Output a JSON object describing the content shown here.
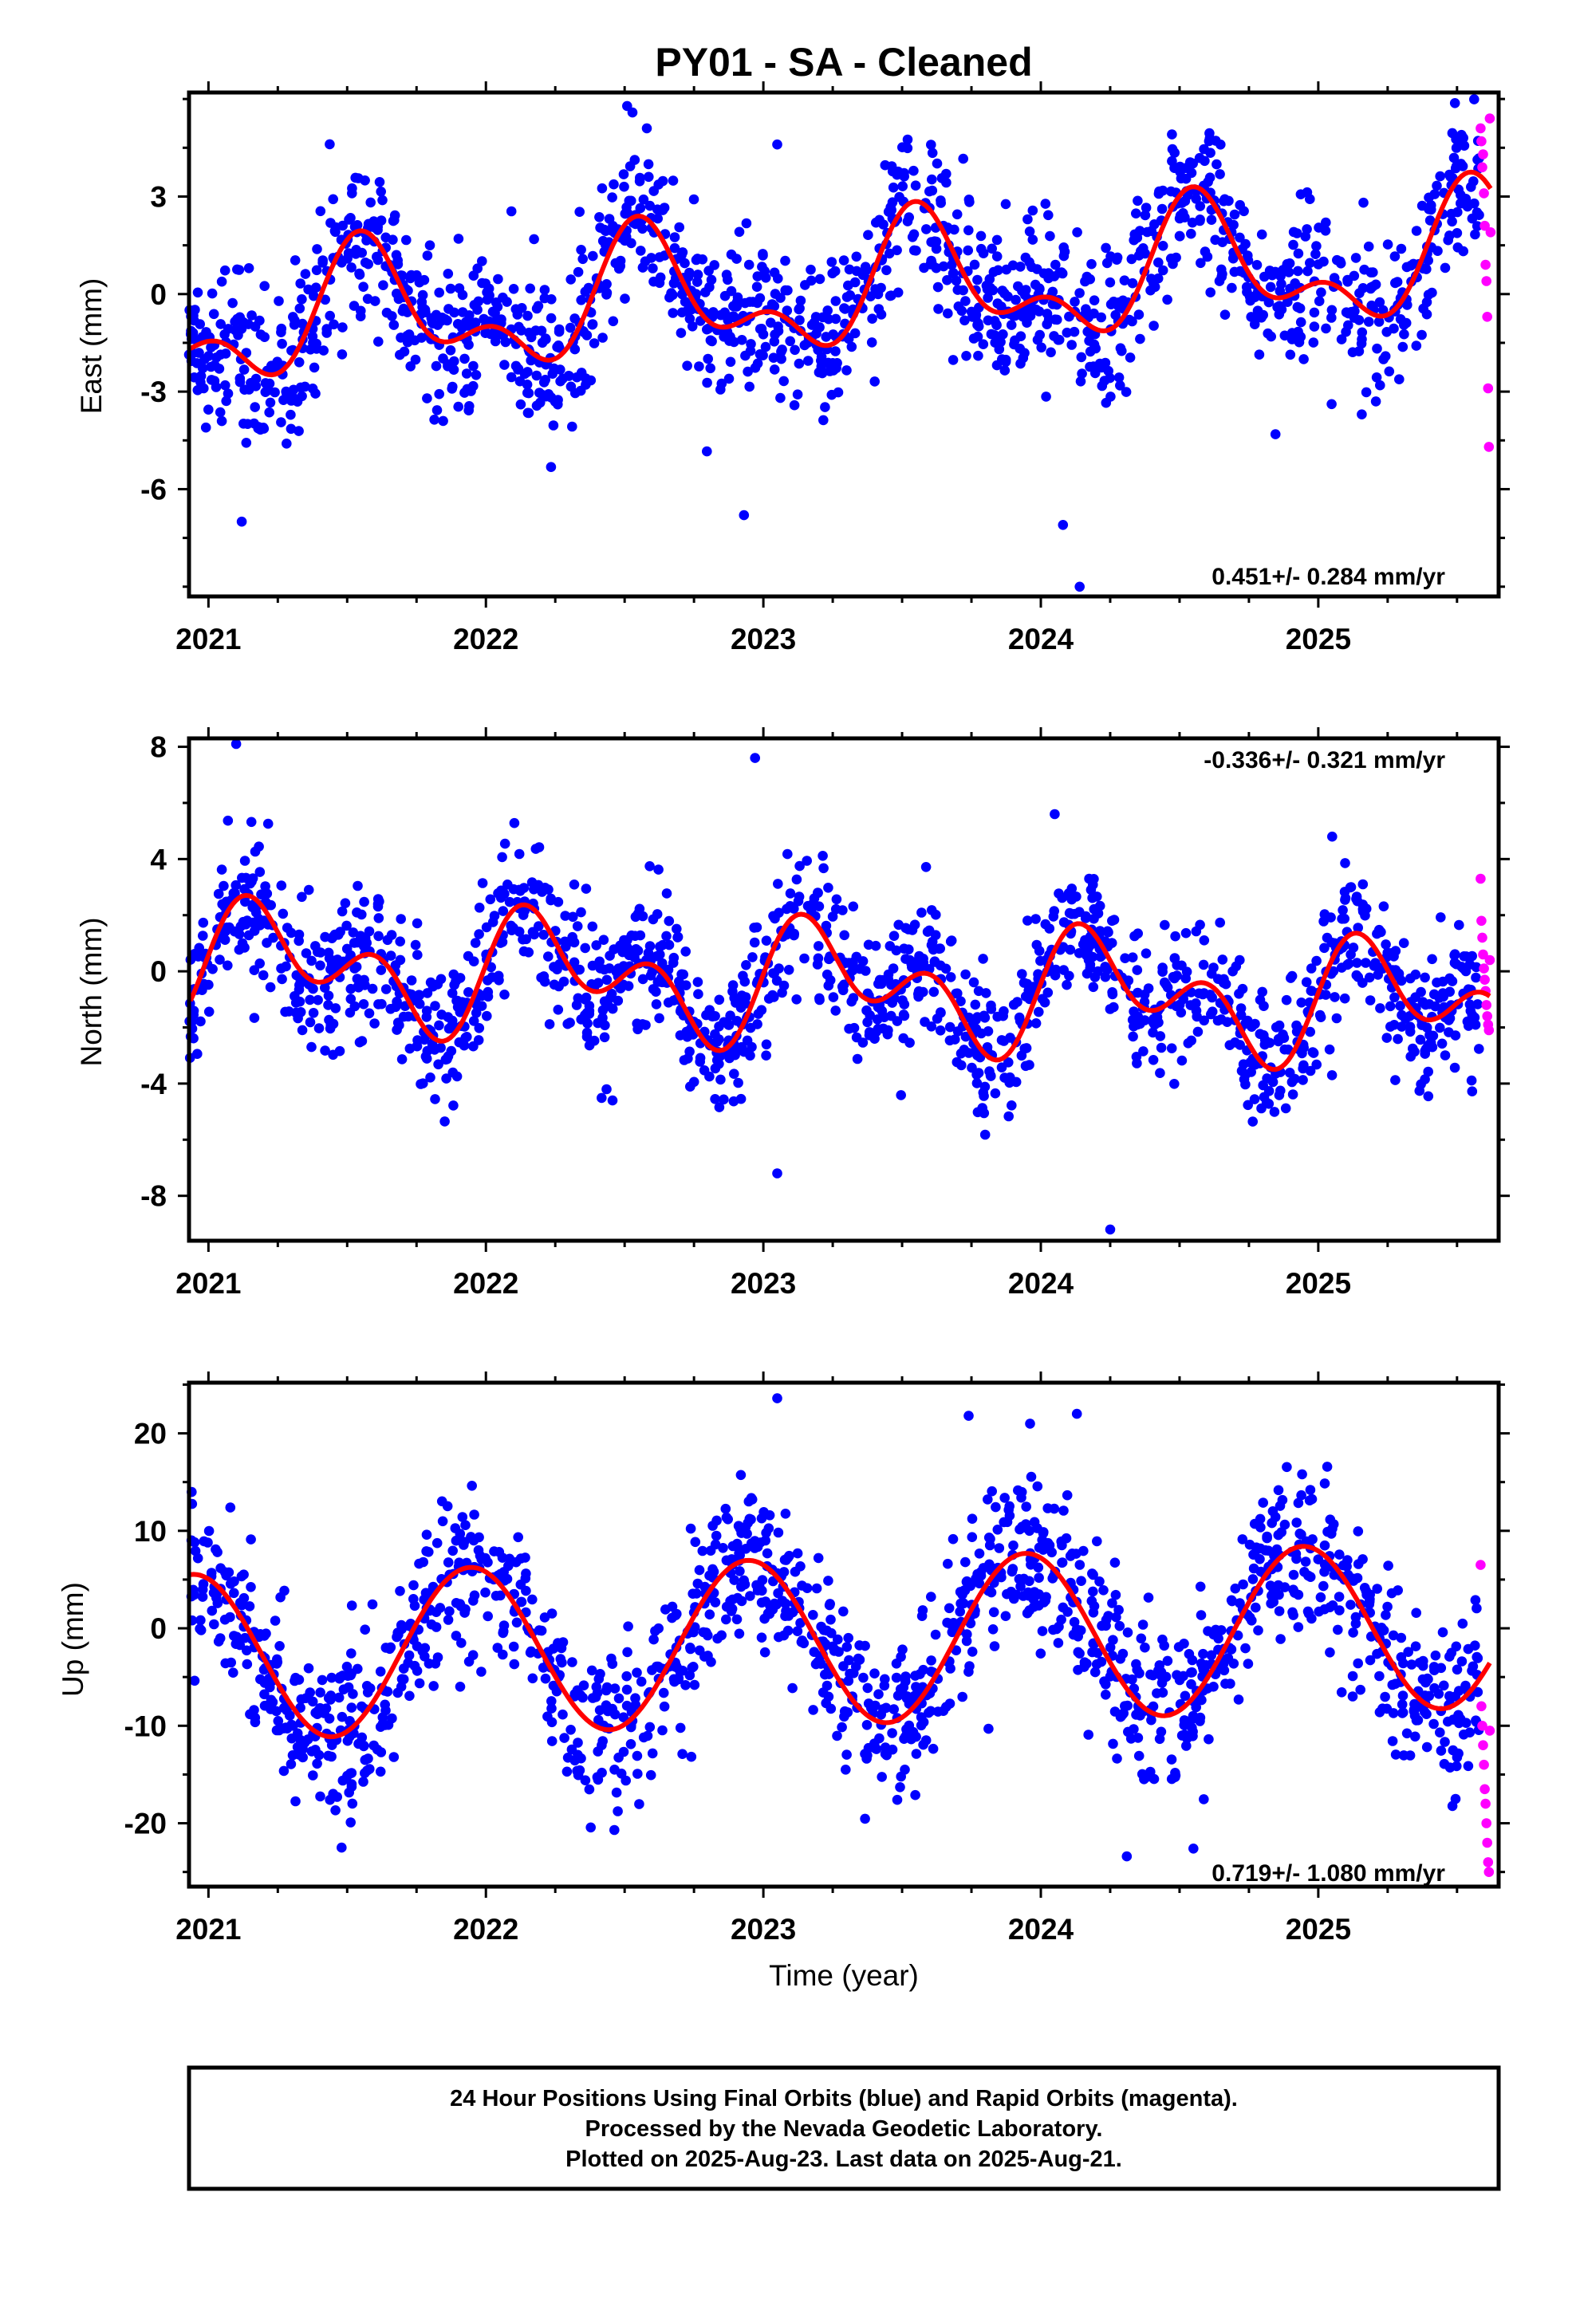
{
  "title": "PY01  - SA - Cleaned",
  "xlabel": "Time (year)",
  "colors": {
    "final": "#0000ff",
    "rapid": "#ff00ff",
    "fit": "#ff0000",
    "frame": "#000000"
  },
  "footer": {
    "line1": "24 Hour Positions Using Final Orbits (blue) and Rapid Orbits (magenta).",
    "line2": "Processed by the Nevada Geodetic Laboratory.",
    "line3": "Plotted on 2025-Aug-23. Last data on 2025-Aug-21."
  },
  "chart_data": [
    {
      "type": "scatter",
      "id": "east",
      "ylabel": "East (mm)",
      "rate_label": "0.451+/- 0.284 mm/yr",
      "rate_position": "bottom-right",
      "xlim": [
        2020.93,
        2025.65
      ],
      "ylim": [
        -9.3,
        6.2
      ],
      "xticks": [
        2021,
        2022,
        2023,
        2024,
        2025
      ],
      "xtick_labels": [
        "2021",
        "2022",
        "2023",
        "2024",
        "2025"
      ],
      "yticks": [
        -6,
        -3,
        0,
        3
      ],
      "ytick_labels": [
        "-6",
        "-3",
        "0",
        "3"
      ],
      "model": {
        "t0": 2023.0,
        "offset": 0.0,
        "rate": 0.451,
        "a1": -1.45,
        "b1": -0.75,
        "a2": 0.9,
        "b2": 0.45
      },
      "scatter_sd": 1.2,
      "final_range": [
        2020.93,
        2025.58
      ],
      "rapid_x": [
        2025.585,
        2025.588,
        2025.591,
        2025.594,
        2025.597,
        2025.6,
        2025.603,
        2025.606,
        2025.609,
        2025.612,
        2025.615,
        2025.618,
        2025.621
      ],
      "rapid_y": [
        5.1,
        4.7,
        3.9,
        4.3,
        3.1,
        2.1,
        0.9,
        0.4,
        -0.7,
        -2.9,
        -4.7,
        5.4,
        1.9
      ],
      "outliers_x": [
        2021.12,
        2022.93,
        2023.05,
        2024.08,
        2024.14,
        2022.58
      ],
      "outliers_y": [
        -7.0,
        -6.8,
        4.6,
        -7.1,
        -9.0,
        5.1
      ]
    },
    {
      "type": "scatter",
      "id": "north",
      "ylabel": "North (mm)",
      "rate_label": "-0.336+/- 0.321 mm/yr",
      "rate_position": "top-right",
      "xlim": [
        2020.93,
        2025.65
      ],
      "ylim": [
        -9.6,
        8.3
      ],
      "xticks": [
        2021,
        2022,
        2023,
        2024,
        2025
      ],
      "xtick_labels": [
        "2021",
        "2022",
        "2023",
        "2024",
        "2025"
      ],
      "yticks": [
        -8,
        -4,
        0,
        4,
        8
      ],
      "ytick_labels": [
        "-8",
        "-4",
        "0",
        "4",
        "8"
      ],
      "model": {
        "t0": 2023.0,
        "offset": -0.4,
        "rate": -0.336,
        "a1": 0.1,
        "b1": 1.4,
        "a2": 0.2,
        "b2": 1.4
      },
      "scatter_sd": 1.3,
      "final_range": [
        2020.93,
        2025.58
      ],
      "rapid_x": [
        2025.585,
        2025.588,
        2025.591,
        2025.594,
        2025.597,
        2025.6,
        2025.603,
        2025.606,
        2025.609,
        2025.612,
        2025.615,
        2025.618
      ],
      "rapid_y": [
        3.3,
        1.8,
        1.2,
        0.6,
        0.1,
        -0.3,
        -0.7,
        -1.2,
        -1.6,
        -1.9,
        -2.1,
        0.4
      ],
      "outliers_x": [
        2021.1,
        2023.05,
        2024.05,
        2024.25,
        2025.05,
        2022.97
      ],
      "outliers_y": [
        8.1,
        -7.2,
        5.6,
        -9.2,
        4.8,
        7.6
      ]
    },
    {
      "type": "scatter",
      "id": "up",
      "ylabel": "Up (mm)",
      "rate_label": "0.719+/- 1.080 mm/yr",
      "rate_position": "bottom-right",
      "xlim": [
        2020.93,
        2025.65
      ],
      "ylim": [
        -26.5,
        25.2
      ],
      "xticks": [
        2021,
        2022,
        2023,
        2024,
        2025
      ],
      "xtick_labels": [
        "2021",
        "2022",
        "2023",
        "2024",
        "2025"
      ],
      "yticks": [
        -20,
        -10,
        0,
        10,
        20
      ],
      "ytick_labels": [
        "-20",
        "-10",
        "0",
        "10",
        "20"
      ],
      "model": {
        "t0": 2023.0,
        "offset": -1.5,
        "rate": 0.719,
        "a1": 8.0,
        "b1": -2.9,
        "a2": 0.0,
        "b2": 0.0
      },
      "scatter_sd": 4.2,
      "final_range": [
        2020.93,
        2025.58
      ],
      "rapid_x": [
        2025.585,
        2025.588,
        2025.591,
        2025.594,
        2025.597,
        2025.6,
        2025.603,
        2025.606,
        2025.609,
        2025.612,
        2025.615,
        2025.618
      ],
      "rapid_y": [
        6.5,
        -8.0,
        -10.0,
        -12.0,
        -14.0,
        -16.5,
        -18.0,
        -20.0,
        -22.0,
        -24.0,
        -25.0,
        -10.5
      ],
      "outliers_x": [
        2023.05,
        2024.13,
        2024.31,
        2024.55,
        2023.74,
        2021.48
      ],
      "outliers_y": [
        23.6,
        22.0,
        -23.4,
        -22.6,
        21.8,
        -22.5
      ]
    }
  ]
}
